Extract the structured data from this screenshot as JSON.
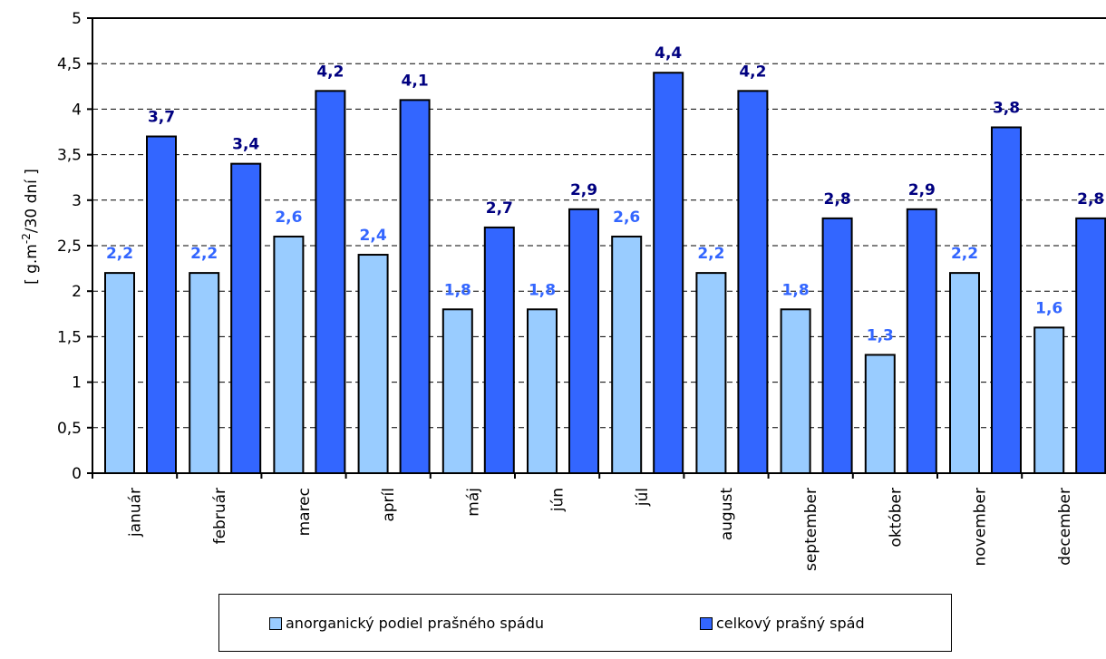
{
  "chart_data": {
    "type": "bar",
    "ylabel": "[ g.m-2/30 dní ]",
    "ylabel_main": "[ g.m",
    "ylabel_sup": "-2",
    "ylabel_rest": "/30 dní ]",
    "ylim": [
      0,
      5
    ],
    "yticks": [
      "0",
      "0,5",
      "1",
      "1,5",
      "2",
      "2,5",
      "3",
      "3,5",
      "4",
      "4,5",
      "5"
    ],
    "grid": true,
    "legend_position": "bottom",
    "categories": [
      "január",
      "február",
      "marec",
      "apríl",
      "máj",
      "jún",
      "júl",
      "august",
      "september",
      "október",
      "november",
      "december"
    ],
    "series": [
      {
        "name": "anorganický podiel prašného spádu",
        "values": [
          2.2,
          2.2,
          2.6,
          2.4,
          1.8,
          1.8,
          2.6,
          2.2,
          1.8,
          1.3,
          2.2,
          1.6
        ],
        "labels": [
          "2,2",
          "2,2",
          "2,6",
          "2,4",
          "1,8",
          "1,8",
          "2,6",
          "2,2",
          "1,8",
          "1,3",
          "2,2",
          "1,6"
        ],
        "color": "#99ccff",
        "label_color": "#3366ff"
      },
      {
        "name": "celkový prašný spád",
        "values": [
          3.7,
          3.4,
          4.2,
          4.1,
          2.7,
          2.9,
          4.4,
          4.2,
          2.8,
          2.9,
          3.8,
          2.8
        ],
        "labels": [
          "3,7",
          "3,4",
          "4,2",
          "4,1",
          "2,7",
          "2,9",
          "4,4",
          "4,2",
          "2,8",
          "2,9",
          "3,8",
          "2,8"
        ],
        "color": "#3366ff",
        "label_color": "#000080"
      }
    ]
  }
}
